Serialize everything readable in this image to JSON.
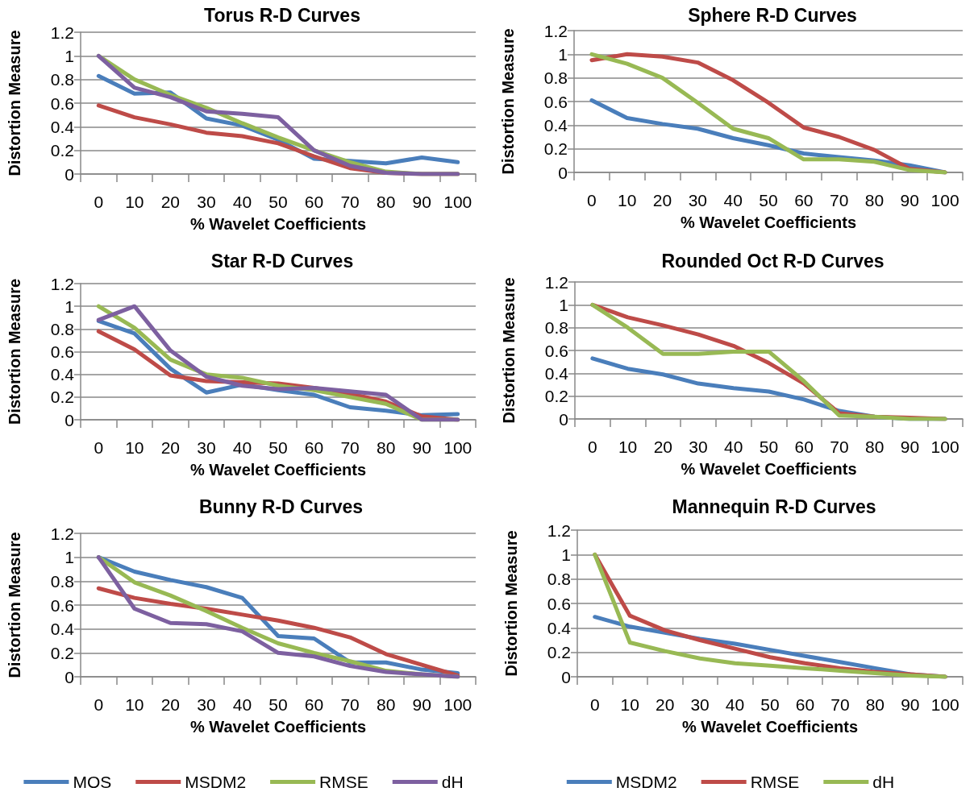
{
  "chart_data": [
    {
      "type": "line",
      "title": "Torus R-D Curves",
      "xlabel": "% Wavelet Coefficients",
      "ylabel": "Distortion Measure",
      "categories": [
        "0",
        "10",
        "20",
        "30",
        "40",
        "50",
        "60",
        "70",
        "80",
        "90",
        "100"
      ],
      "ylim": [
        0,
        1.2
      ],
      "yticks": [
        0,
        0.2,
        0.4,
        0.6,
        0.8,
        1,
        1.2
      ],
      "grid": "y",
      "legend": false,
      "marker": "none",
      "line_style": "solid",
      "series": [
        {
          "color": "#4a7ebb",
          "values": [
            0.83,
            0.68,
            0.69,
            0.47,
            0.41,
            0.29,
            0.13,
            0.11,
            0.09,
            0.14,
            0.1
          ]
        },
        {
          "color": "#be4b48",
          "values": [
            0.58,
            0.48,
            0.42,
            0.35,
            0.32,
            0.26,
            0.15,
            0.05,
            0.01,
            0,
            0
          ]
        },
        {
          "color": "#98b954",
          "values": [
            1,
            0.8,
            0.67,
            0.56,
            0.43,
            0.31,
            0.2,
            0.1,
            0.02,
            0,
            0
          ]
        },
        {
          "color": "#7d60a0",
          "values": [
            1,
            0.73,
            0.65,
            0.53,
            0.51,
            0.48,
            0.2,
            0.07,
            0.01,
            0,
            0
          ]
        }
      ]
    },
    {
      "type": "line",
      "title": "Sphere R-D Curves",
      "xlabel": "% Wavelet Coefficients",
      "ylabel": "Distortion Measure",
      "categories": [
        "0",
        "10",
        "20",
        "30",
        "40",
        "50",
        "60",
        "70",
        "80",
        "90",
        "100"
      ],
      "ylim": [
        0,
        1.2
      ],
      "yticks": [
        0,
        0.2,
        0.4,
        0.6,
        0.8,
        1,
        1.2
      ],
      "grid": "y",
      "legend": false,
      "marker": "none",
      "line_style": "solid",
      "series": [
        {
          "color": "#4a7ebb",
          "values": [
            0.61,
            0.46,
            0.41,
            0.37,
            0.29,
            0.23,
            0.16,
            0.13,
            0.1,
            0.06,
            0
          ]
        },
        {
          "color": "#be4b48",
          "values": [
            0.95,
            1,
            0.98,
            0.93,
            0.78,
            0.59,
            0.38,
            0.3,
            0.19,
            0.03,
            0
          ]
        },
        {
          "color": "#98b954",
          "values": [
            1,
            0.92,
            0.8,
            0.59,
            0.37,
            0.29,
            0.11,
            0.11,
            0.09,
            0.02,
            0
          ]
        }
      ]
    },
    {
      "type": "line",
      "title": "Star R-D Curves",
      "xlabel": "% Wavelet Coefficients",
      "ylabel": "Distortion Measure",
      "categories": [
        "0",
        "10",
        "20",
        "30",
        "40",
        "50",
        "60",
        "70",
        "80",
        "90",
        "100"
      ],
      "ylim": [
        0,
        1.2
      ],
      "yticks": [
        0,
        0.2,
        0.4,
        0.6,
        0.8,
        1,
        1.2
      ],
      "grid": "y",
      "legend": false,
      "marker": "none",
      "line_style": "solid",
      "series": [
        {
          "color": "#4a7ebb",
          "values": [
            0.87,
            0.76,
            0.45,
            0.24,
            0.31,
            0.26,
            0.22,
            0.11,
            0.08,
            0.04,
            0.05
          ]
        },
        {
          "color": "#be4b48",
          "values": [
            0.78,
            0.62,
            0.39,
            0.34,
            0.33,
            0.32,
            0.28,
            0.23,
            0.16,
            0.03,
            0
          ]
        },
        {
          "color": "#98b954",
          "values": [
            1,
            0.81,
            0.53,
            0.4,
            0.37,
            0.3,
            0.26,
            0.2,
            0.14,
            0,
            0
          ]
        },
        {
          "color": "#7d60a0",
          "values": [
            0.88,
            1,
            0.61,
            0.38,
            0.3,
            0.27,
            0.28,
            0.25,
            0.22,
            0,
            0
          ]
        }
      ]
    },
    {
      "type": "line",
      "title": "Rounded Oct R-D Curves",
      "xlabel": "% Wavelet Coefficients",
      "ylabel": "Distortion Measure",
      "categories": [
        "0",
        "10",
        "20",
        "30",
        "40",
        "50",
        "60",
        "70",
        "80",
        "90",
        "100"
      ],
      "ylim": [
        0,
        1.2
      ],
      "yticks": [
        0,
        0.2,
        0.4,
        0.6,
        0.8,
        1,
        1.2
      ],
      "grid": "y",
      "legend": false,
      "marker": "none",
      "line_style": "solid",
      "series": [
        {
          "color": "#4a7ebb",
          "values": [
            0.53,
            0.44,
            0.39,
            0.31,
            0.27,
            0.24,
            0.17,
            0.07,
            0.02,
            0,
            0
          ]
        },
        {
          "color": "#be4b48",
          "values": [
            1,
            0.89,
            0.82,
            0.74,
            0.64,
            0.49,
            0.31,
            0.05,
            0.02,
            0.01,
            0
          ]
        },
        {
          "color": "#98b954",
          "values": [
            1,
            0.8,
            0.57,
            0.57,
            0.59,
            0.59,
            0.33,
            0.03,
            0.02,
            0,
            0
          ]
        }
      ]
    },
    {
      "type": "line",
      "title": "Bunny R-D Curves",
      "xlabel": "% Wavelet Coefficients",
      "ylabel": "Distortion Measure",
      "categories": [
        "0",
        "10",
        "20",
        "30",
        "40",
        "50",
        "60",
        "70",
        "80",
        "90",
        "100"
      ],
      "ylim": [
        0,
        1.2
      ],
      "yticks": [
        0,
        0.2,
        0.4,
        0.6,
        0.8,
        1,
        1.2
      ],
      "grid": "y",
      "legend": "bottom",
      "marker": "none",
      "line_style": "solid",
      "series": [
        {
          "name": "MOS",
          "color": "#4a7ebb",
          "values": [
            1,
            0.88,
            0.81,
            0.75,
            0.66,
            0.34,
            0.32,
            0.12,
            0.12,
            0.06,
            0.03
          ]
        },
        {
          "name": "MSDM2",
          "color": "#be4b48",
          "values": [
            0.74,
            0.66,
            0.61,
            0.57,
            0.52,
            0.47,
            0.41,
            0.33,
            0.19,
            0.1,
            0.01
          ]
        },
        {
          "name": "RMSE",
          "color": "#98b954",
          "values": [
            1,
            0.79,
            0.68,
            0.55,
            0.41,
            0.28,
            0.2,
            0.13,
            0.05,
            0.02,
            0
          ]
        },
        {
          "name": "dH",
          "color": "#7d60a0",
          "values": [
            1,
            0.57,
            0.45,
            0.44,
            0.38,
            0.2,
            0.17,
            0.09,
            0.04,
            0.02,
            0
          ]
        }
      ]
    },
    {
      "type": "line",
      "title": "Mannequin R-D Curves",
      "xlabel": "% Wavelet Coefficients",
      "ylabel": "Distortion Measure",
      "categories": [
        "0",
        "10",
        "20",
        "30",
        "40",
        "50",
        "60",
        "70",
        "80",
        "90",
        "100"
      ],
      "ylim": [
        0,
        1.2
      ],
      "yticks": [
        0,
        0.2,
        0.4,
        0.6,
        0.8,
        1,
        1.2
      ],
      "grid": "y",
      "legend": "bottom",
      "marker": "none",
      "line_style": "solid",
      "series": [
        {
          "name": "MSDM2",
          "color": "#4a7ebb",
          "values": [
            0.49,
            0.41,
            0.36,
            0.31,
            0.27,
            0.22,
            0.17,
            0.12,
            0.07,
            0.02,
            0
          ]
        },
        {
          "name": "RMSE",
          "color": "#be4b48",
          "values": [
            1,
            0.5,
            0.38,
            0.3,
            0.23,
            0.16,
            0.11,
            0.07,
            0.04,
            0.02,
            0
          ]
        },
        {
          "name": "dH",
          "color": "#98b954",
          "values": [
            1,
            0.28,
            0.21,
            0.15,
            0.11,
            0.09,
            0.07,
            0.05,
            0.03,
            0.01,
            0
          ]
        }
      ]
    }
  ]
}
